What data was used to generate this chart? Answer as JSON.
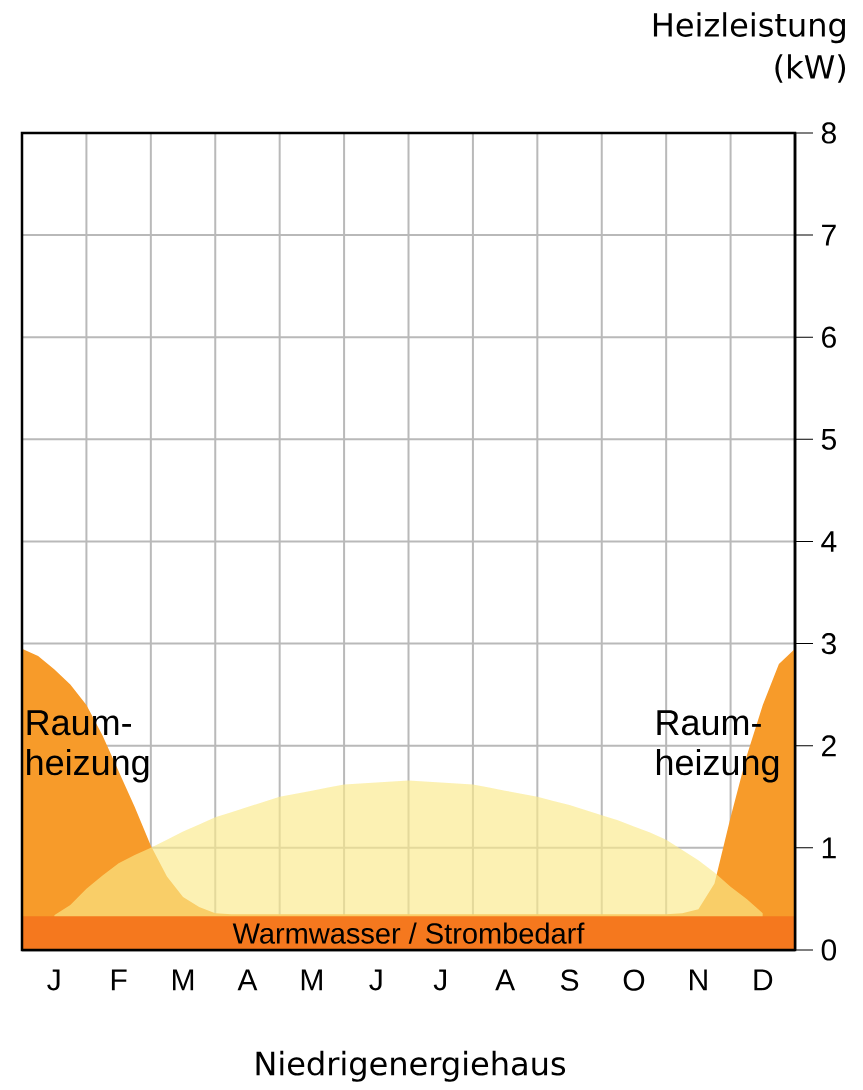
{
  "chart_data": {
    "type": "area",
    "xlabel": "Niedrigenergiehaus",
    "ylabel": "Heizleistung (kW)",
    "categories": [
      null,
      null,
      "J",
      null,
      null,
      null,
      "F",
      null,
      null,
      null,
      "M",
      null,
      null,
      null,
      "A",
      null,
      null,
      null,
      "M",
      null,
      null,
      null,
      "J",
      null,
      null,
      null,
      "J",
      null,
      null,
      null,
      "A",
      null,
      null,
      null,
      "S",
      null,
      null,
      null,
      "O",
      null,
      null,
      null,
      "N",
      null,
      null,
      null,
      "D",
      null,
      null
    ],
    "ylim": [
      0,
      8
    ],
    "yticks": [
      0,
      1,
      2,
      3,
      4,
      5,
      6,
      7,
      8
    ],
    "grid": true,
    "series": [
      {
        "color": "#fbe98a",
        "values": [
          null,
          null,
          0.34,
          0.44,
          0.6,
          0.73,
          0.85,
          0.93,
          1.0,
          1.08,
          1.16,
          1.23,
          1.3,
          1.35,
          1.4,
          1.45,
          1.5,
          1.53,
          1.56,
          1.59,
          1.62,
          1.63,
          1.64,
          1.65,
          1.66,
          1.65,
          1.64,
          1.63,
          1.62,
          1.59,
          1.56,
          1.53,
          1.5,
          1.46,
          1.42,
          1.37,
          1.32,
          1.27,
          1.21,
          1.15,
          1.08,
          0.98,
          0.88,
          0.76,
          0.62,
          0.5,
          0.36,
          null,
          null
        ]
      },
      {
        "name": "Raum-heizung",
        "color": "#f79b2a",
        "values": [
          2.95,
          2.88,
          2.75,
          2.6,
          2.4,
          2.1,
          1.75,
          1.4,
          1.02,
          0.72,
          0.52,
          0.42,
          0.36,
          0.35,
          0.35,
          0.35,
          0.35,
          0.35,
          0.35,
          0.35,
          0.35,
          0.35,
          0.35,
          0.35,
          0.35,
          0.35,
          0.35,
          0.35,
          0.35,
          0.35,
          0.35,
          0.35,
          0.35,
          0.35,
          0.35,
          0.35,
          0.35,
          0.35,
          0.35,
          0.35,
          0.35,
          0.36,
          0.4,
          0.65,
          1.3,
          1.9,
          2.4,
          2.8,
          2.95
        ]
      },
      {
        "name": "Warmwasser / Strombedarf",
        "color": "#f5781e",
        "values": [
          0.33,
          0.33,
          0.33,
          0.33,
          0.33,
          0.33,
          0.33,
          0.33,
          0.33,
          0.33,
          0.33,
          0.33,
          0.33,
          0.33,
          0.33,
          0.33,
          0.33,
          0.33,
          0.33,
          0.33,
          0.33,
          0.33,
          0.33,
          0.33,
          0.33,
          0.33,
          0.33,
          0.33,
          0.33,
          0.33,
          0.33,
          0.33,
          0.33,
          0.33,
          0.33,
          0.33,
          0.33,
          0.33,
          0.33,
          0.33,
          0.33,
          0.33,
          0.33,
          0.33,
          0.33,
          0.33,
          0.33,
          0.33,
          0.33
        ]
      }
    ]
  }
}
